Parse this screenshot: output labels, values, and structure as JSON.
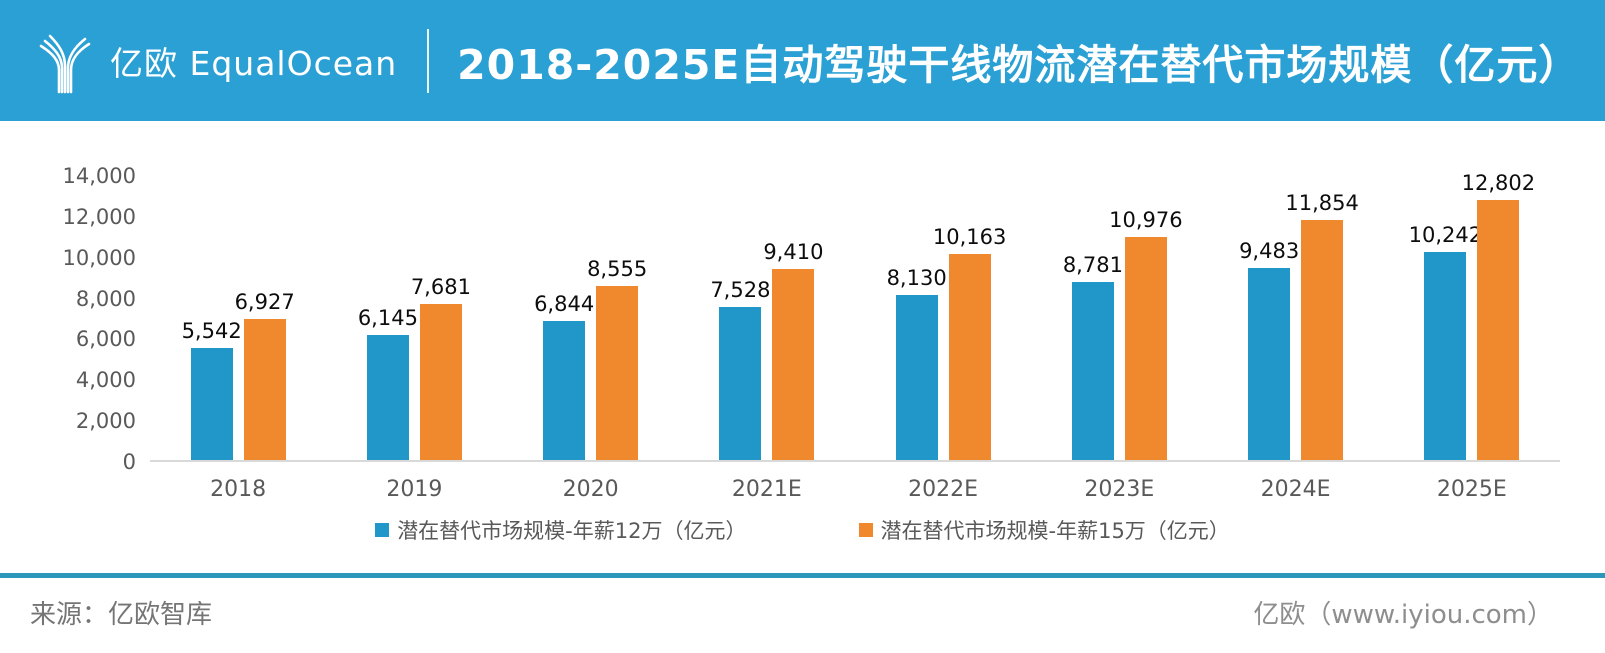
{
  "header": {
    "brand": "亿欧 EqualOcean",
    "title": "2018-2025E自动驾驶干线物流潜在替代市场规模（亿元）",
    "background_color": "#2AA0D4"
  },
  "chart_data": {
    "type": "bar",
    "title": "2018-2025E自动驾驶干线物流潜在替代市场规模（亿元）",
    "categories": [
      "2018",
      "2019",
      "2020",
      "2021E",
      "2022E",
      "2023E",
      "2024E",
      "2025E"
    ],
    "series": [
      {
        "name": "潜在替代市场规模-年薪12万（亿元）",
        "color": "#2196C9",
        "values": [
          5542,
          6145,
          6844,
          7528,
          8130,
          8781,
          9483,
          10242
        ]
      },
      {
        "name": "潜在替代市场规模-年薪15万（亿元）",
        "color": "#F0882D",
        "values": [
          6927,
          7681,
          8555,
          9410,
          10163,
          10976,
          11854,
          12802
        ]
      }
    ],
    "xlabel": "",
    "ylabel": "",
    "ylim": [
      0,
      14000
    ],
    "yticks": [
      0,
      2000,
      4000,
      6000,
      8000,
      10000,
      12000,
      14000
    ],
    "ytick_labels": [
      "0",
      "2,000",
      "4,000",
      "6,000",
      "8,000",
      "10,000",
      "12,000",
      "14,000"
    ],
    "grid": false,
    "legend_position": "bottom",
    "value_labels_shown": true
  },
  "footer": {
    "source": "来源：亿欧智库",
    "site": "亿欧（www.iyiou.com）"
  }
}
